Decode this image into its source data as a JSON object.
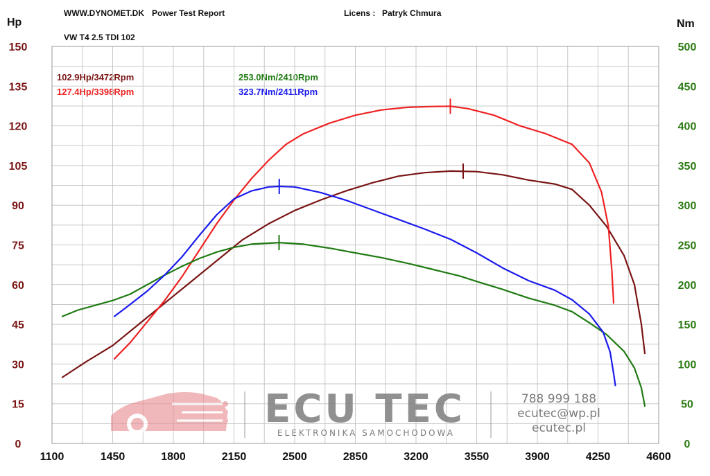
{
  "header": {
    "site": "WWW.DYNOMET.DK",
    "report": "Power Test Report",
    "licens_label": "Licens :",
    "licens_name": "Patryk Chmura",
    "vehicle": "VW T4 2.5 TDI 102"
  },
  "watermark": {
    "brand": "ECU TEC",
    "tagline": "ELEKTRONIKA SAMOCHODOWA",
    "phone": "788 999 188",
    "email": "ecutec@wp.pl",
    "website": "ecutec.pl"
  },
  "colors": {
    "hp_stock": "#7a1414",
    "hp_tuned": "#ee2222",
    "nm_stock": "#1f7a12",
    "nm_tuned": "#1a1aee",
    "grid": "#c8c8c8",
    "hp_axis": "#7a1414",
    "nm_axis": "#2a7a12"
  },
  "chart_data": {
    "type": "line",
    "xlabel": "",
    "left_axis_unit": "Hp",
    "right_axis_unit": "Nm",
    "x_range": [
      1100,
      4600
    ],
    "x_ticks": [
      1100,
      1450,
      1800,
      2150,
      2500,
      2850,
      3200,
      3550,
      3900,
      4250,
      4600
    ],
    "hp_range": [
      0,
      150
    ],
    "hp_ticks": [
      0,
      15,
      30,
      45,
      60,
      75,
      90,
      105,
      120,
      135,
      150
    ],
    "nm_range": [
      0,
      500
    ],
    "nm_ticks": [
      0,
      50,
      100,
      150,
      200,
      250,
      300,
      350,
      400,
      450,
      500
    ],
    "grid": true,
    "annotations": {
      "hp_stock_peak": "102.9Hp/3472Rpm",
      "hp_tuned_peak": "127.4Hp/3398Rpm",
      "nm_stock_peak": "253.0Nm/2410Rpm",
      "nm_tuned_peak": "323.7Nm/2411Rpm"
    },
    "series": [
      {
        "axis": "hp",
        "color": "#7a1414",
        "peak": [
          3472,
          102.9
        ],
        "points": [
          [
            1160,
            25
          ],
          [
            1300,
            31
          ],
          [
            1450,
            37
          ],
          [
            1600,
            45
          ],
          [
            1750,
            53
          ],
          [
            1900,
            61
          ],
          [
            2050,
            69
          ],
          [
            2200,
            77
          ],
          [
            2350,
            83
          ],
          [
            2500,
            88
          ],
          [
            2650,
            92
          ],
          [
            2800,
            95.5
          ],
          [
            2950,
            98.5
          ],
          [
            3100,
            101
          ],
          [
            3250,
            102.3
          ],
          [
            3400,
            102.9
          ],
          [
            3550,
            102.7
          ],
          [
            3700,
            101.5
          ],
          [
            3850,
            99.5
          ],
          [
            4000,
            98
          ],
          [
            4100,
            96
          ],
          [
            4200,
            90
          ],
          [
            4300,
            82
          ],
          [
            4400,
            71
          ],
          [
            4460,
            60
          ],
          [
            4500,
            45
          ],
          [
            4520,
            34
          ]
        ]
      },
      {
        "axis": "hp",
        "color": "#ee2222",
        "peak": [
          3398,
          127.4
        ],
        "points": [
          [
            1460,
            32
          ],
          [
            1550,
            38
          ],
          [
            1650,
            46
          ],
          [
            1750,
            54
          ],
          [
            1850,
            63
          ],
          [
            1950,
            73
          ],
          [
            2050,
            83
          ],
          [
            2150,
            92
          ],
          [
            2250,
            100
          ],
          [
            2350,
            107
          ],
          [
            2450,
            113
          ],
          [
            2550,
            117
          ],
          [
            2700,
            121
          ],
          [
            2850,
            124
          ],
          [
            3000,
            126
          ],
          [
            3150,
            127
          ],
          [
            3300,
            127.3
          ],
          [
            3400,
            127.4
          ],
          [
            3500,
            126.5
          ],
          [
            3650,
            124
          ],
          [
            3800,
            120
          ],
          [
            3950,
            117
          ],
          [
            4100,
            113
          ],
          [
            4200,
            106
          ],
          [
            4270,
            95
          ],
          [
            4310,
            82
          ],
          [
            4330,
            65
          ],
          [
            4340,
            53
          ]
        ]
      },
      {
        "axis": "nm",
        "color": "#1f7a12",
        "peak": [
          2410,
          253.0
        ],
        "points": [
          [
            1160,
            160
          ],
          [
            1250,
            168
          ],
          [
            1350,
            174
          ],
          [
            1450,
            180
          ],
          [
            1550,
            188
          ],
          [
            1650,
            200
          ],
          [
            1750,
            212
          ],
          [
            1850,
            223
          ],
          [
            1950,
            233
          ],
          [
            2050,
            241
          ],
          [
            2150,
            247
          ],
          [
            2250,
            251
          ],
          [
            2410,
            253
          ],
          [
            2550,
            251
          ],
          [
            2700,
            246
          ],
          [
            2850,
            240
          ],
          [
            3000,
            234
          ],
          [
            3150,
            227
          ],
          [
            3300,
            219
          ],
          [
            3450,
            211
          ],
          [
            3550,
            204
          ],
          [
            3700,
            194
          ],
          [
            3850,
            183
          ],
          [
            4000,
            174
          ],
          [
            4100,
            166
          ],
          [
            4200,
            152
          ],
          [
            4300,
            137
          ],
          [
            4400,
            116
          ],
          [
            4460,
            95
          ],
          [
            4500,
            70
          ],
          [
            4520,
            47
          ]
        ]
      },
      {
        "axis": "nm",
        "color": "#1a1aee",
        "peak": [
          2411,
          323.7
        ],
        "points": [
          [
            1460,
            160
          ],
          [
            1550,
            175
          ],
          [
            1650,
            192
          ],
          [
            1750,
            212
          ],
          [
            1850,
            235
          ],
          [
            1950,
            262
          ],
          [
            2050,
            288
          ],
          [
            2150,
            308
          ],
          [
            2250,
            318
          ],
          [
            2350,
            323
          ],
          [
            2411,
            323.7
          ],
          [
            2500,
            323
          ],
          [
            2650,
            316
          ],
          [
            2800,
            306
          ],
          [
            2950,
            294
          ],
          [
            3100,
            282
          ],
          [
            3250,
            270
          ],
          [
            3400,
            257
          ],
          [
            3550,
            240
          ],
          [
            3700,
            221
          ],
          [
            3850,
            205
          ],
          [
            4000,
            193
          ],
          [
            4100,
            181
          ],
          [
            4200,
            163
          ],
          [
            4280,
            140
          ],
          [
            4320,
            115
          ],
          [
            4340,
            88
          ],
          [
            4350,
            73
          ]
        ]
      }
    ]
  }
}
